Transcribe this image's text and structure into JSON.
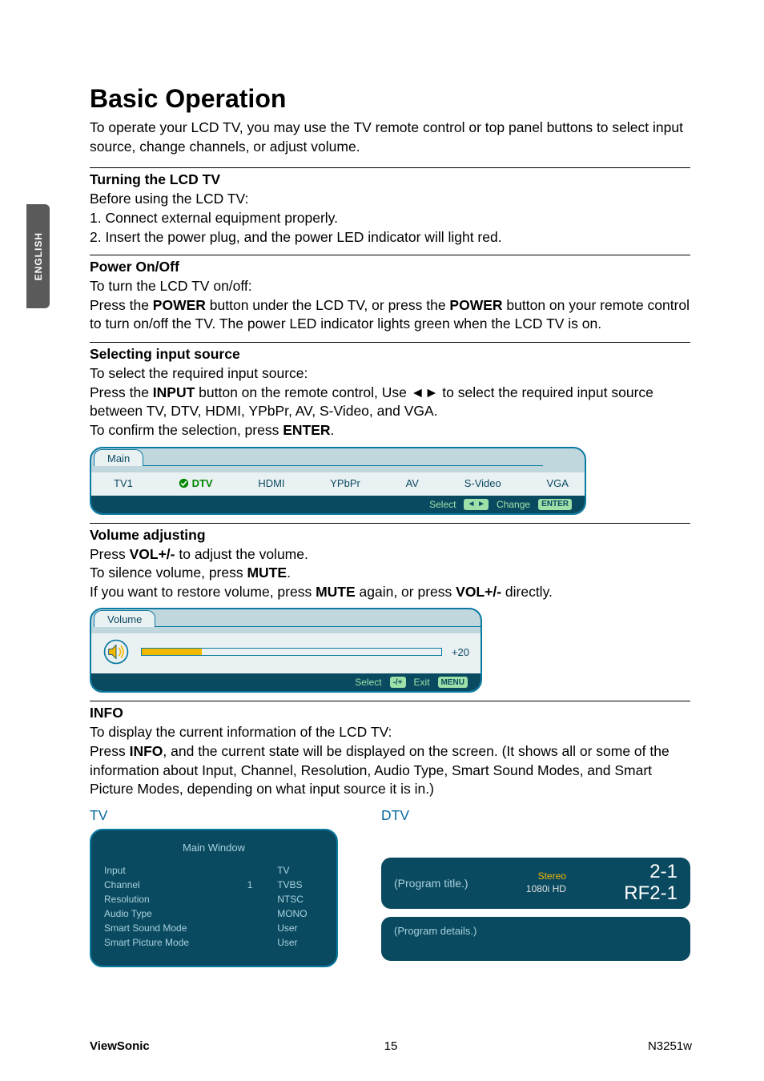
{
  "side_tab": "ENGLISH",
  "title": "Basic Operation",
  "intro": "To operate your LCD TV, you may use the TV remote control or top panel buttons to select input source, change channels, or adjust volume.",
  "sections": {
    "turning": {
      "heading": "Turning the LCD TV",
      "body": "Before using the LCD TV:\n1. Connect external equipment properly.\n2. Insert the power plug, and the power LED indicator will light red."
    },
    "power": {
      "heading": "Power On/Off",
      "pre": "To turn the LCD TV on/off:",
      "l1a": "Press the ",
      "l1b": "POWER",
      "l1c": " button under the LCD TV, or press the ",
      "l1d": "POWER",
      "l1e": " button on your remote control to turn on/off the TV. The power LED indicator lights green when the LCD TV is on."
    },
    "input": {
      "heading": "Selecting input source",
      "pre": "To select the required input source:",
      "l1a": "Press the ",
      "l1b": "INPUT",
      "l1c": " button on the remote control, Use ◄► to select the required input source between TV, DTV, HDMI, YPbPr, AV, S-Video, and VGA.",
      "l2a": "To confirm the selection, press ",
      "l2b": "ENTER",
      "l2c": "."
    },
    "volume": {
      "heading": "Volume adjusting",
      "l1a": "Press ",
      "l1b": "VOL+/-",
      "l1c": " to adjust the volume.",
      "l2a": "To silence volume, press ",
      "l2b": "MUTE",
      "l2c": ".",
      "l3a": "If you want to restore volume, press ",
      "l3b": "MUTE",
      "l3c": " again, or press ",
      "l3d": "VOL+/-",
      "l3e": " directly."
    },
    "info": {
      "heading": "INFO",
      "pre": "To display the current information of the LCD TV:",
      "l1a": "Press ",
      "l1b": "INFO",
      "l1c": ", and the current state will be displayed on the screen. (It shows all or some of the information about Input, Channel, Resolution, Audio Type, Smart Sound Modes, and Smart Picture Modes, depending on what input source it is in.)"
    }
  },
  "osd_main": {
    "tab": "Main",
    "items": [
      "TV1",
      "DTV",
      "HDMI",
      "YPbPr",
      "AV",
      "S-Video",
      "VGA"
    ],
    "selected_index": 1,
    "hints": {
      "select": "Select",
      "select_key": "◄ ►",
      "change": "Change",
      "change_key": "ENTER"
    },
    "colors": {
      "border": "#0a7aa0",
      "top_bg": "#eaf1f3",
      "bot_bg": "#0a4a60",
      "text": "#0a4a60",
      "hint_text": "#9de0a8",
      "sel_text": "#008800"
    }
  },
  "osd_volume": {
    "tab": "Volume",
    "value": "+20",
    "fill_pct": 20,
    "hints": {
      "select": "Select",
      "select_key": "-/+",
      "exit": "Exit",
      "exit_key": "MENU"
    },
    "colors": {
      "fill": "#f2b800"
    }
  },
  "info_panel": {
    "tv_label": "TV",
    "dtv_label": "DTV",
    "tv": {
      "title": "Main Window",
      "rows": [
        [
          "Input",
          "",
          "TV"
        ],
        [
          "Channel",
          "1",
          "TVBS"
        ],
        [
          "Resolution",
          "",
          "NTSC"
        ],
        [
          "Audio Type",
          "",
          "MONO"
        ],
        [
          "Smart Sound Mode",
          "",
          "User"
        ],
        [
          "Smart Picture Mode",
          "",
          "User"
        ]
      ]
    },
    "dtv": {
      "program_title": "(Program title.)",
      "stereo": "Stereo",
      "res": "1080i HD",
      "ch1": "2-1",
      "ch2": "RF2-1",
      "program_details": "(Program details.)"
    }
  },
  "footer": {
    "brand": "ViewSonic",
    "page": "15",
    "model": "N3251w"
  }
}
